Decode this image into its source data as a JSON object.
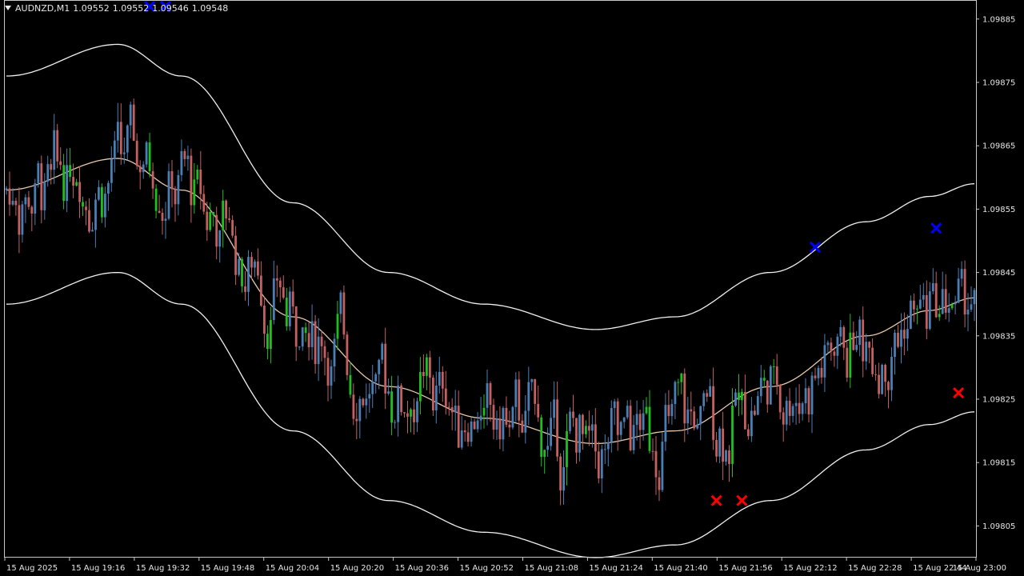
{
  "header": {
    "symbol": "AUDNZD,M1",
    "open": "1.09552",
    "high": "1.09552",
    "low": "1.09546",
    "close": "1.09548"
  },
  "colors": {
    "background": "#000000",
    "frame": "#c8c8c8",
    "bull_candle": "#4a7fb5",
    "bear_candle": "#c46060",
    "neutral_candle": "#1fbf1f",
    "envelope_outer": "#f0f0f0",
    "envelope_middle": "#e8c8a8",
    "signal_buy": "#0000ff",
    "signal_sell": "#ff0000",
    "text": "#e6e6e6"
  },
  "chart_data": {
    "type": "candlestick",
    "symbol": "AUDNZD",
    "timeframe": "M1",
    "ylim": [
      1.098,
      1.09888
    ],
    "y_ticks": [
      "1.09885",
      "1.09875",
      "1.09865",
      "1.09855",
      "1.09845",
      "1.09835",
      "1.09825",
      "1.09815",
      "1.09805"
    ],
    "x_ticks": [
      "15 Aug 2025",
      "15 Aug 19:16",
      "15 Aug 19:32",
      "15 Aug 19:48",
      "15 Aug 20:04",
      "15 Aug 20:20",
      "15 Aug 20:36",
      "15 Aug 20:52",
      "15 Aug 21:08",
      "15 Aug 21:24",
      "15 Aug 21:40",
      "15 Aug 21:56",
      "15 Aug 22:12",
      "15 Aug 22:28",
      "15 Aug 22:44",
      "15 Aug 23:00"
    ],
    "bar_count": 305,
    "middle_band_anchors": [
      [
        0,
        1.09858
      ],
      [
        35,
        1.09863
      ],
      [
        55,
        1.09858
      ],
      [
        90,
        1.09838
      ],
      [
        120,
        1.09827
      ],
      [
        150,
        1.09822
      ],
      [
        185,
        1.09818
      ],
      [
        210,
        1.0982
      ],
      [
        240,
        1.09827
      ],
      [
        270,
        1.09835
      ],
      [
        290,
        1.09839
      ],
      [
        304,
        1.09841
      ]
    ],
    "band_half_width": 0.00018,
    "signals": [
      {
        "type": "buy",
        "bar": 45,
        "price": 1.09887
      },
      {
        "type": "buy",
        "bar": 50,
        "price": 1.09887
      },
      {
        "type": "sell",
        "bar": 223,
        "price": 1.09809
      },
      {
        "type": "sell",
        "bar": 231,
        "price": 1.09809
      },
      {
        "type": "buy",
        "bar": 254,
        "price": 1.09849
      },
      {
        "type": "buy",
        "bar": 292,
        "price": 1.09852
      },
      {
        "type": "sell",
        "bar": 299,
        "price": 1.09826
      }
    ]
  }
}
